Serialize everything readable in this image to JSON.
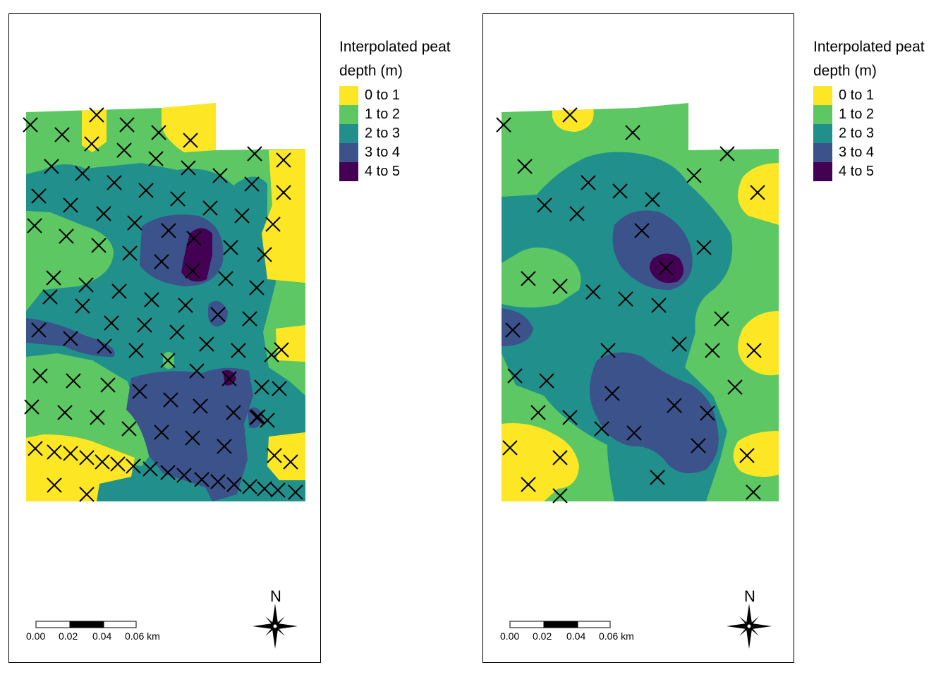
{
  "legend": {
    "title_line1": "Interpolated peat",
    "title_line2": "depth (m)",
    "classes": [
      {
        "label": "0 to 1",
        "color": "#FDE725"
      },
      {
        "label": "1 to 2",
        "color": "#5DC863"
      },
      {
        "label": "2 to 3",
        "color": "#21908C"
      },
      {
        "label": "3 to 4",
        "color": "#3B528B"
      },
      {
        "label": "4 to 5",
        "color": "#440154"
      }
    ]
  },
  "scalebar": {
    "ticks": [
      "0.00",
      "0.02",
      "0.04",
      "0.06 km"
    ]
  },
  "north_arrow": {
    "label": "N"
  },
  "sample_point_marker": "x-marker-icon"
}
